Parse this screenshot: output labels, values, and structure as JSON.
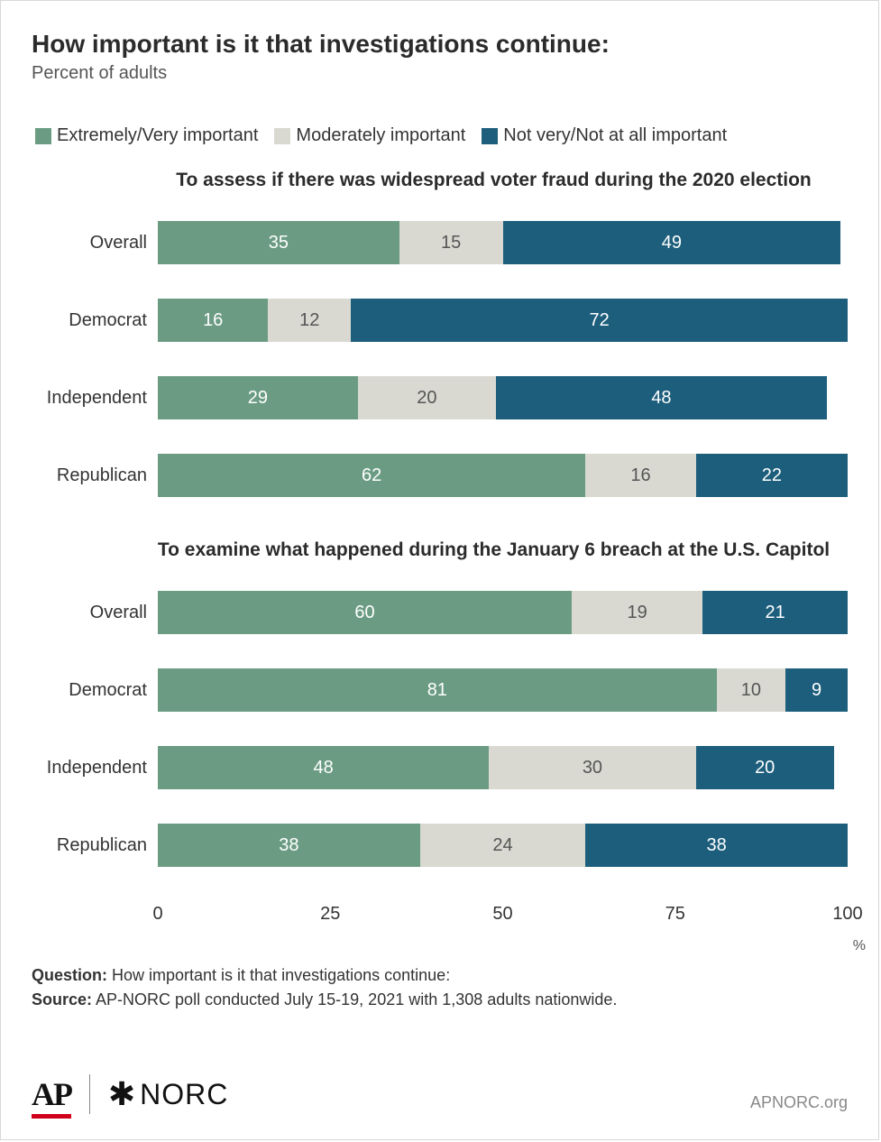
{
  "title": "How important is it that investigations continue:",
  "subtitle": "Percent of adults",
  "colors": {
    "extremely": "#6b9c83",
    "moderately": "#d9d9d2",
    "notvery": "#1c5e7c",
    "text_dark": "#2b2b2b"
  },
  "legend": [
    {
      "label": "Extremely/Very important",
      "color": "#6b9c83"
    },
    {
      "label": "Moderately important",
      "color": "#d9d9d2"
    },
    {
      "label": "Not very/Not at all important",
      "color": "#1c5e7c"
    }
  ],
  "xaxis": {
    "min": 0,
    "max": 100,
    "ticks": [
      0,
      25,
      50,
      75,
      100
    ],
    "unit": "%"
  },
  "panels": [
    {
      "title": "To assess if there was widespread voter fraud during the 2020 election",
      "rows": [
        {
          "label": "Overall",
          "values": [
            35,
            15,
            49
          ]
        },
        {
          "label": "Democrat",
          "values": [
            16,
            12,
            72
          ]
        },
        {
          "label": "Independent",
          "values": [
            29,
            20,
            48
          ]
        },
        {
          "label": "Republican",
          "values": [
            62,
            16,
            22
          ]
        }
      ]
    },
    {
      "title": "To examine what happened during the January 6 breach at the U.S. Capitol",
      "rows": [
        {
          "label": "Overall",
          "values": [
            60,
            19,
            21
          ]
        },
        {
          "label": "Democrat",
          "values": [
            81,
            10,
            9
          ]
        },
        {
          "label": "Independent",
          "values": [
            48,
            30,
            20
          ]
        },
        {
          "label": "Republican",
          "values": [
            38,
            24,
            38
          ]
        }
      ]
    }
  ],
  "footer": {
    "question_label": "Question:",
    "question_text": " How important is it that investigations continue:",
    "source_label": "Source:",
    "source_text": " AP-NORC poll conducted July 15-19, 2021 with 1,308 adults nationwide."
  },
  "logos": {
    "ap": "AP",
    "norc": "NORC"
  },
  "site": "APNORC.org"
}
